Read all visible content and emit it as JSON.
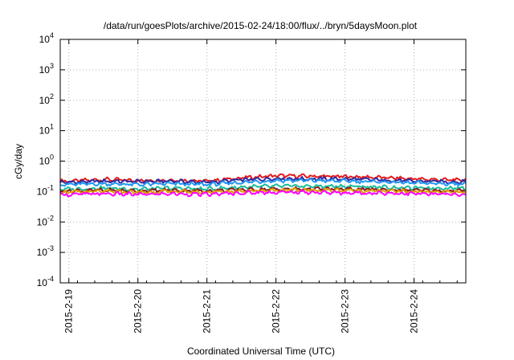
{
  "chart_data": {
    "type": "line",
    "title": "/data/run/goesPlots/archive/2015-02-24/18:00/flux/../bryn/5daysMoon.plot",
    "xlabel": "Coordinated Universal Time (UTC)",
    "ylabel": "cGy/day",
    "y_scale": "log",
    "ylim": [
      0.0001,
      10000
    ],
    "xlim": [
      "2015-02-18T21:00",
      "2015-02-24T18:00"
    ],
    "x_ticks": [
      "2015-2-19",
      "2015-2-20",
      "2015-2-21",
      "2015-2-22",
      "2015-2-23",
      "2015-2-24"
    ],
    "y_ticks": [
      {
        "base": "10",
        "exp": "-4"
      },
      {
        "base": "10",
        "exp": "-3"
      },
      {
        "base": "10",
        "exp": "-2"
      },
      {
        "base": "10",
        "exp": "-1"
      },
      {
        "base": "10",
        "exp": "0"
      },
      {
        "base": "10",
        "exp": "1"
      },
      {
        "base": "10",
        "exp": "2"
      },
      {
        "base": "10",
        "exp": "3"
      },
      {
        "base": "10",
        "exp": "4"
      }
    ],
    "grid": true,
    "x": [
      "2015-02-19T00:00",
      "2015-02-19T12:00",
      "2015-02-20T00:00",
      "2015-02-20T12:00",
      "2015-02-21T00:00",
      "2015-02-21T12:00",
      "2015-02-22T00:00",
      "2015-02-22T12:00",
      "2015-02-23T00:00",
      "2015-02-23T12:00",
      "2015-02-24T00:00",
      "2015-02-24T12:00"
    ],
    "series": [
      {
        "color": "#e41a1c",
        "values": [
          0.22,
          0.25,
          0.23,
          0.24,
          0.22,
          0.28,
          0.33,
          0.32,
          0.31,
          0.29,
          0.26,
          0.24
        ]
      },
      {
        "color": "#2c2ca0",
        "values": [
          0.2,
          0.22,
          0.21,
          0.22,
          0.2,
          0.24,
          0.27,
          0.26,
          0.26,
          0.24,
          0.22,
          0.21
        ]
      },
      {
        "color": "#2196f3",
        "values": [
          0.17,
          0.18,
          0.17,
          0.18,
          0.17,
          0.2,
          0.23,
          0.23,
          0.22,
          0.21,
          0.19,
          0.18
        ]
      },
      {
        "color": "#1abc9c",
        "values": [
          0.12,
          0.13,
          0.12,
          0.13,
          0.12,
          0.14,
          0.15,
          0.15,
          0.15,
          0.14,
          0.13,
          0.13
        ]
      },
      {
        "color": "#8b1a1a",
        "values": [
          0.105,
          0.11,
          0.105,
          0.11,
          0.105,
          0.115,
          0.12,
          0.12,
          0.12,
          0.115,
          0.11,
          0.105
        ]
      },
      {
        "color": "#e0a000",
        "values": [
          0.095,
          0.1,
          0.095,
          0.1,
          0.095,
          0.105,
          0.11,
          0.11,
          0.11,
          0.105,
          0.1,
          0.095
        ]
      },
      {
        "color": "#ff00ff",
        "values": [
          0.08,
          0.085,
          0.08,
          0.085,
          0.08,
          0.09,
          0.095,
          0.095,
          0.09,
          0.09,
          0.085,
          0.08
        ]
      }
    ]
  }
}
